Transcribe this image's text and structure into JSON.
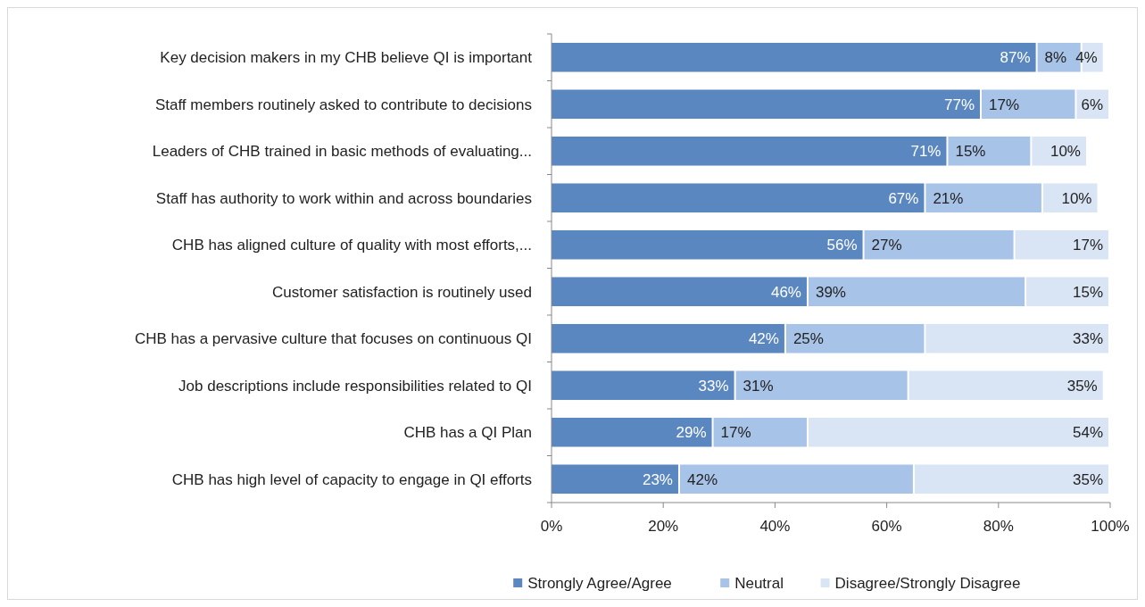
{
  "chart_data": {
    "type": "bar",
    "orientation": "horizontal",
    "stacked": true,
    "legend": "bottom",
    "grid": false,
    "categories": [
      "Key decision makers in my CHB believe QI is important",
      "Staff members routinely asked to contribute to decisions",
      "Leaders of CHB trained in basic methods of evaluating...",
      "Staff has authority to work within and across boundaries",
      "CHB has aligned culture of quality with most efforts,...",
      "Customer satisfaction is routinely used",
      "CHB has a pervasive culture that focuses on continuous QI",
      "Job descriptions include responsibilities related to QI",
      "CHB has a QI Plan",
      "CHB has high level of capacity to engage in QI efforts"
    ],
    "series": [
      {
        "name": "Strongly Agree/Agree",
        "color": "#5b87c0",
        "values": [
          87,
          77,
          71,
          67,
          56,
          46,
          42,
          33,
          29,
          23
        ],
        "value_labels": [
          "87%",
          "77%",
          "71%",
          "67%",
          "56%",
          "46%",
          "42%",
          "33%",
          "29%",
          "23%"
        ]
      },
      {
        "name": "Neutral",
        "color": "#a8c3e8",
        "values": [
          8,
          17,
          15,
          21,
          27,
          39,
          25,
          31,
          17,
          42
        ],
        "value_labels": [
          "8%",
          "17%",
          "15%",
          "21%",
          "27%",
          "39%",
          "25%",
          "31%",
          "17%",
          "42%"
        ]
      },
      {
        "name": "Disagree/Strongly Disagree",
        "color": "#d9e4f4",
        "values": [
          4,
          6,
          10,
          10,
          17,
          15,
          33,
          35,
          54,
          35
        ],
        "value_labels": [
          "4%",
          "6%",
          "10%",
          "10%",
          "17%",
          "15%",
          "33%",
          "35%",
          "54%",
          "35%"
        ]
      }
    ],
    "xlim": [
      0,
      100
    ],
    "xticks": [
      {
        "value": 0,
        "label": "0%"
      },
      {
        "value": 20,
        "label": "20%"
      },
      {
        "value": 40,
        "label": "40%"
      },
      {
        "value": 60,
        "label": "60%"
      },
      {
        "value": 80,
        "label": "80%"
      },
      {
        "value": 100,
        "label": "100%"
      }
    ]
  }
}
